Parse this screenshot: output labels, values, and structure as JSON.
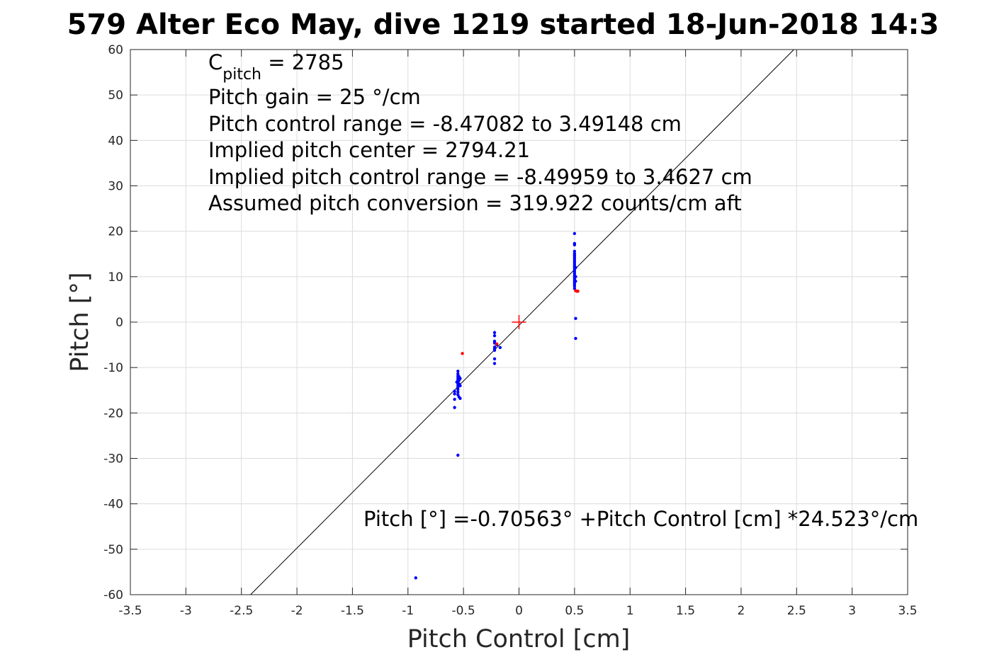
{
  "chart_data": {
    "type": "scatter",
    "title": "579 Alter Eco May, dive 1219 started 18-Jun-2018 14:3",
    "xlabel": "Pitch Control [cm]",
    "ylabel": "Pitch [°]",
    "xlim": [
      -3.5,
      3.5
    ],
    "ylim": [
      -60,
      60
    ],
    "xticks": [
      -3.5,
      -3,
      -2.5,
      -2,
      -1.5,
      -1,
      -0.5,
      0,
      0.5,
      1,
      1.5,
      2,
      2.5,
      3,
      3.5
    ],
    "xtick_labels": [
      "-3.5",
      "-3",
      "-2.5",
      "-2",
      "-1.5",
      "-1",
      "-0.5",
      "0",
      "0.5",
      "1",
      "1.5",
      "2",
      "2.5",
      "3",
      "3.5"
    ],
    "yticks": [
      -60,
      -50,
      -40,
      -30,
      -20,
      -10,
      0,
      10,
      20,
      30,
      40,
      50,
      60
    ],
    "ytick_labels": [
      "-60",
      "-50",
      "-40",
      "-30",
      "-20",
      "-10",
      "0",
      "10",
      "20",
      "30",
      "40",
      "50",
      "60"
    ],
    "grid": true,
    "colors": {
      "points": "#0000ff",
      "excluded": "#ff0000",
      "center_marker": "#ff0000",
      "fit_line": "#000000"
    },
    "fit_line": {
      "intercept": -0.70563,
      "slope": 24.523
    },
    "center_marker": {
      "x": 0,
      "y": 0
    },
    "annotations": {
      "c_pitch_base": "C",
      "c_pitch_sub": "pitch",
      "c_pitch_value": " = 2785",
      "lines": [
        "Pitch gain = 25 °/cm",
        "Pitch control range = -8.47082 to 3.49148 cm",
        "Implied pitch center = 2794.21",
        "Implied pitch control range = -8.49959 to 3.4627 cm",
        "Assumed pitch conversion = 319.922 counts/cm aft"
      ],
      "fit_equation": "Pitch [°] =-0.70563° +Pitch Control [cm] *24.523°/cm"
    },
    "series": [
      {
        "color": "#0000ff",
        "points": [
          [
            0.5,
            19.5
          ],
          [
            0.5,
            17.3
          ],
          [
            0.5,
            17.0
          ],
          [
            0.5,
            15.6
          ],
          [
            0.5,
            15.1
          ],
          [
            0.5,
            14.7
          ],
          [
            0.5,
            14.3
          ],
          [
            0.5,
            13.9
          ],
          [
            0.5,
            13.5
          ],
          [
            0.5,
            13.1
          ],
          [
            0.5,
            12.7
          ],
          [
            0.5,
            12.3
          ],
          [
            0.5,
            11.9
          ],
          [
            0.5,
            11.5
          ],
          [
            0.5,
            11.1
          ],
          [
            0.5,
            10.7
          ],
          [
            0.5,
            10.3
          ],
          [
            0.5,
            9.9
          ],
          [
            0.5,
            9.5
          ],
          [
            0.5,
            9.1
          ],
          [
            0.5,
            8.7
          ],
          [
            0.5,
            8.3
          ],
          [
            0.5,
            7.9
          ],
          [
            0.5,
            7.4
          ],
          [
            0.51,
            12.0
          ],
          [
            0.51,
            10.0
          ],
          [
            0.51,
            9.0
          ],
          [
            0.51,
            0.8
          ],
          [
            0.51,
            -3.6
          ],
          [
            -0.22,
            -2.3
          ],
          [
            -0.22,
            -3.0
          ],
          [
            -0.22,
            -4.2
          ],
          [
            -0.22,
            -4.6
          ],
          [
            -0.22,
            -5.5
          ],
          [
            -0.22,
            -5.9
          ],
          [
            -0.22,
            -6.2
          ],
          [
            -0.22,
            -8.1
          ],
          [
            -0.22,
            -9.1
          ],
          [
            -0.2,
            -5.0
          ],
          [
            -0.17,
            -5.6
          ],
          [
            -0.55,
            -10.8
          ],
          [
            -0.55,
            -11.4
          ],
          [
            -0.55,
            -11.9
          ],
          [
            -0.55,
            -12.3
          ],
          [
            -0.55,
            -12.7
          ],
          [
            -0.55,
            -13.1
          ],
          [
            -0.55,
            -13.5
          ],
          [
            -0.55,
            -13.9
          ],
          [
            -0.55,
            -14.3
          ],
          [
            -0.55,
            -14.8
          ],
          [
            -0.55,
            -15.4
          ],
          [
            -0.55,
            -16.0
          ],
          [
            -0.54,
            -12.0
          ],
          [
            -0.54,
            -12.8
          ],
          [
            -0.54,
            -13.6
          ],
          [
            -0.54,
            -16.5
          ],
          [
            -0.53,
            -12.4
          ],
          [
            -0.53,
            -14.0
          ],
          [
            -0.53,
            -16.8
          ],
          [
            -0.56,
            -13.2
          ],
          [
            -0.58,
            -15.2
          ],
          [
            -0.58,
            -15.8
          ],
          [
            -0.58,
            -17.0
          ],
          [
            -0.58,
            -18.8
          ],
          [
            -0.55,
            -29.3
          ],
          [
            -0.93,
            -56.3
          ]
        ]
      },
      {
        "color": "#ff0000",
        "points": [
          [
            -0.51,
            -6.9
          ],
          [
            -0.2,
            -4.8
          ],
          [
            0.51,
            6.9
          ],
          [
            0.52,
            6.8
          ],
          [
            0.53,
            6.8
          ]
        ]
      }
    ]
  }
}
